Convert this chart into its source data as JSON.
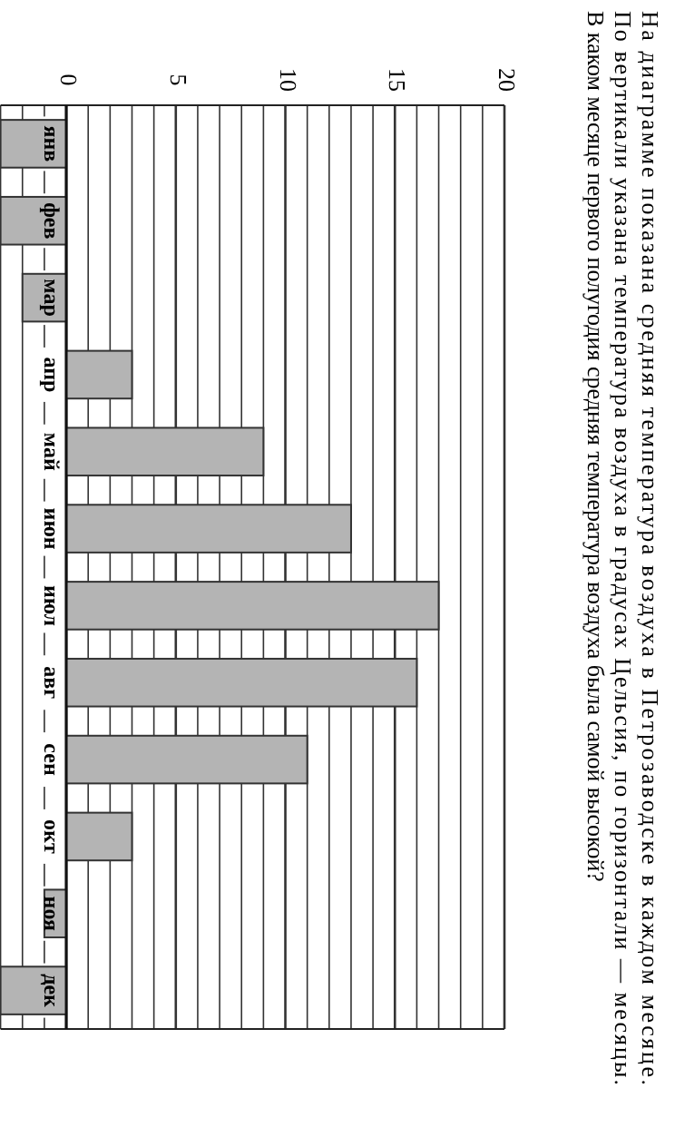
{
  "chart_data": {
    "type": "bar",
    "title": "На диаграмме показана средняя температура воздуха в Петрозаводске в каждом месяце.",
    "subtitle": "По вертикали указана температура воздуха в градусах Цельсия, по горизонтали — месяцы.",
    "annotations": [
      "В каком месяце первого полугодия средняя температура воздуха была самой высокой?"
    ],
    "orientation": "horizontal",
    "categories": [
      "янв",
      "фев",
      "мар",
      "апр",
      "май",
      "июн",
      "июл",
      "авг",
      "сен",
      "окт",
      "ноя",
      "дек"
    ],
    "values": [
      -3,
      -3,
      -2,
      3,
      9,
      13,
      17,
      16,
      11,
      3,
      -1,
      -3
    ],
    "color": "#b4b4b4",
    "xlim": [
      -3,
      20
    ],
    "xticks": [
      {
        "value": -3,
        "label": null
      },
      {
        "value": -2,
        "label": null
      },
      {
        "value": -1,
        "label": null
      },
      0,
      {
        "value": 1,
        "label": null
      },
      {
        "value": 2,
        "label": null
      },
      {
        "value": 3,
        "label": null
      },
      {
        "value": 4,
        "label": null
      },
      5,
      {
        "value": 6,
        "label": null
      },
      {
        "value": 7,
        "label": null
      },
      {
        "value": 8,
        "label": null
      },
      {
        "value": 9,
        "label": null
      },
      10,
      {
        "value": 11,
        "label": null
      },
      {
        "value": 12,
        "label": null
      },
      {
        "value": 13,
        "label": null
      },
      {
        "value": 14,
        "label": null
      },
      15,
      {
        "value": 16,
        "label": null
      },
      {
        "value": 17,
        "label": null
      },
      {
        "value": 18,
        "label": null
      },
      {
        "value": 19,
        "label": null
      },
      20
    ],
    "grid": "x"
  }
}
